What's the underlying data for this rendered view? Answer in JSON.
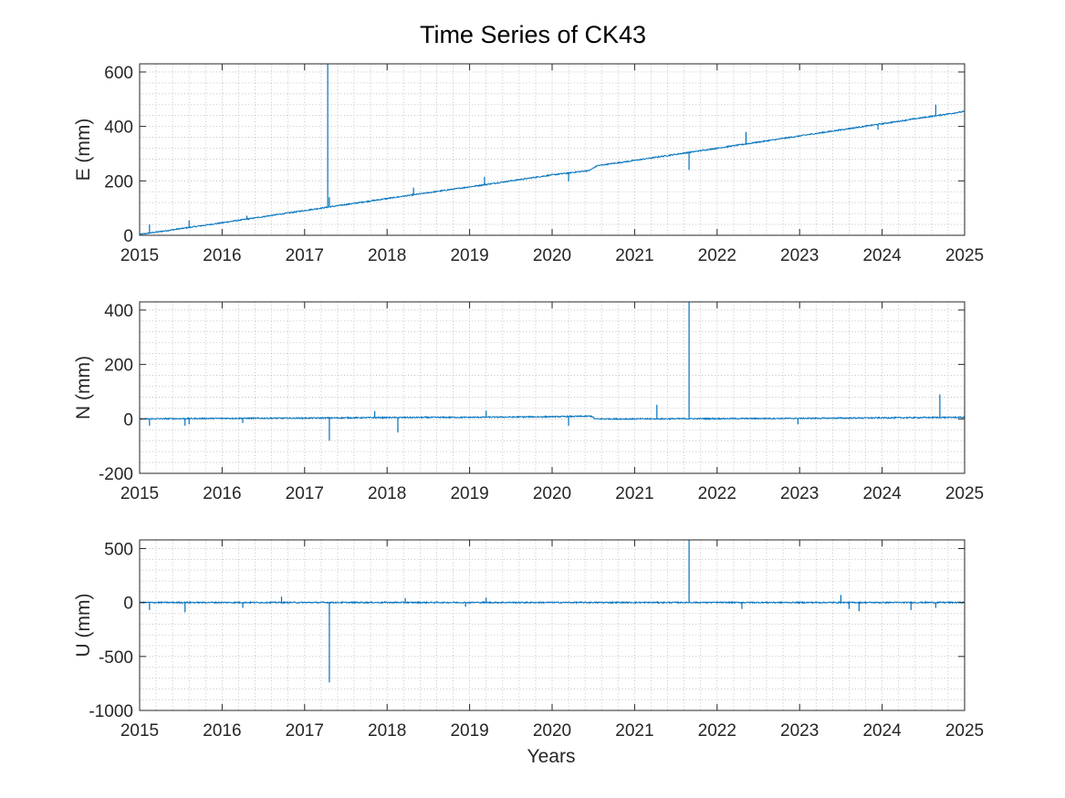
{
  "title": "Time Series of CK43",
  "xlabel": "Years",
  "colors": {
    "line": "#0072BD",
    "grid": "#b8b8b8",
    "axis": "#262626"
  },
  "chart_data": [
    {
      "type": "line",
      "name": "E",
      "ylabel": "E (mm)",
      "xlim": [
        2015,
        2025
      ],
      "ylim": [
        0,
        630
      ],
      "xticks": [
        2015,
        2016,
        2017,
        2018,
        2019,
        2020,
        2021,
        2022,
        2023,
        2024,
        2025
      ],
      "xtick_labels": [
        "2015",
        "2016",
        "2017",
        "2018",
        "2019",
        "2020",
        "2021",
        "2022",
        "2023",
        "2024",
        "2025"
      ],
      "yticks": [
        0,
        200,
        400,
        600
      ],
      "ytick_labels": [
        "0",
        "200",
        "400",
        "600"
      ],
      "grid": "minor-dotted",
      "x": [
        2015.0,
        2016.0,
        2017.0,
        2018.0,
        2019.0,
        2020.0,
        2020.45,
        2020.55,
        2021.0,
        2022.0,
        2023.0,
        2024.0,
        2025.0
      ],
      "y": [
        3,
        46,
        91,
        135,
        178,
        222,
        238,
        256,
        275,
        320,
        365,
        410,
        455
      ],
      "spikes": [
        {
          "x": 2015.12,
          "y": 40
        },
        {
          "x": 2015.6,
          "y": 55
        },
        {
          "x": 2016.3,
          "y": 72
        },
        {
          "x": 2017.28,
          "y": 630
        },
        {
          "x": 2017.3,
          "y": 140
        },
        {
          "x": 2018.32,
          "y": 175
        },
        {
          "x": 2019.18,
          "y": 215
        },
        {
          "x": 2020.2,
          "y": 198
        },
        {
          "x": 2021.66,
          "y": 240
        },
        {
          "x": 2022.35,
          "y": 380
        },
        {
          "x": 2023.95,
          "y": 388
        },
        {
          "x": 2024.65,
          "y": 480
        }
      ]
    },
    {
      "type": "line",
      "name": "N",
      "ylabel": "N (mm)",
      "xlim": [
        2015,
        2025
      ],
      "ylim": [
        -200,
        430
      ],
      "xticks": [
        2015,
        2016,
        2017,
        2018,
        2019,
        2020,
        2021,
        2022,
        2023,
        2024,
        2025
      ],
      "xtick_labels": [
        "2015",
        "2016",
        "2017",
        "2018",
        "2019",
        "2020",
        "2021",
        "2022",
        "2023",
        "2024",
        "2025"
      ],
      "yticks": [
        -200,
        0,
        200,
        400
      ],
      "ytick_labels": [
        "-200",
        "0",
        "200",
        "400"
      ],
      "grid": "minor-dotted",
      "x": [
        2015.0,
        2016.0,
        2017.0,
        2018.0,
        2019.0,
        2020.0,
        2020.48,
        2020.52,
        2021.0,
        2022.0,
        2023.0,
        2024.0,
        2025.0
      ],
      "y": [
        0,
        2,
        3,
        5,
        6,
        8,
        10,
        0,
        0,
        1,
        2,
        4,
        6
      ],
      "spikes": [
        {
          "x": 2015.12,
          "y": -25
        },
        {
          "x": 2015.55,
          "y": -25
        },
        {
          "x": 2015.6,
          "y": -20
        },
        {
          "x": 2016.25,
          "y": -15
        },
        {
          "x": 2017.3,
          "y": -80
        },
        {
          "x": 2017.85,
          "y": 28
        },
        {
          "x": 2018.13,
          "y": -50
        },
        {
          "x": 2019.2,
          "y": 30
        },
        {
          "x": 2020.2,
          "y": -25
        },
        {
          "x": 2021.27,
          "y": 52
        },
        {
          "x": 2021.66,
          "y": 430
        },
        {
          "x": 2022.98,
          "y": -20
        },
        {
          "x": 2024.7,
          "y": 90
        }
      ]
    },
    {
      "type": "line",
      "name": "U",
      "ylabel": "U (mm)",
      "xlim": [
        2015,
        2025
      ],
      "ylim": [
        -1000,
        580
      ],
      "xticks": [
        2015,
        2016,
        2017,
        2018,
        2019,
        2020,
        2021,
        2022,
        2023,
        2024,
        2025
      ],
      "xtick_labels": [
        "2015",
        "2016",
        "2017",
        "2018",
        "2019",
        "2020",
        "2021",
        "2022",
        "2023",
        "2024",
        "2025"
      ],
      "yticks": [
        -1000,
        -500,
        0,
        500
      ],
      "ytick_labels": [
        "-1000",
        "-500",
        "0",
        "500"
      ],
      "grid": "minor-dotted",
      "x": [
        2015.0,
        2016.0,
        2017.0,
        2018.0,
        2019.0,
        2020.0,
        2021.0,
        2022.0,
        2023.0,
        2024.0,
        2025.0
      ],
      "y": [
        0,
        0,
        0,
        0,
        0,
        0,
        0,
        0,
        0,
        0,
        0
      ],
      "spikes": [
        {
          "x": 2015.12,
          "y": -70
        },
        {
          "x": 2015.55,
          "y": -90
        },
        {
          "x": 2016.25,
          "y": -50
        },
        {
          "x": 2016.72,
          "y": 55
        },
        {
          "x": 2017.3,
          "y": -740
        },
        {
          "x": 2018.22,
          "y": 40
        },
        {
          "x": 2018.95,
          "y": -40
        },
        {
          "x": 2019.2,
          "y": 45
        },
        {
          "x": 2021.66,
          "y": 580
        },
        {
          "x": 2022.3,
          "y": -60
        },
        {
          "x": 2023.5,
          "y": 70
        },
        {
          "x": 2023.6,
          "y": -60
        },
        {
          "x": 2023.72,
          "y": -80
        },
        {
          "x": 2024.35,
          "y": -70
        },
        {
          "x": 2024.65,
          "y": -50
        }
      ]
    }
  ]
}
